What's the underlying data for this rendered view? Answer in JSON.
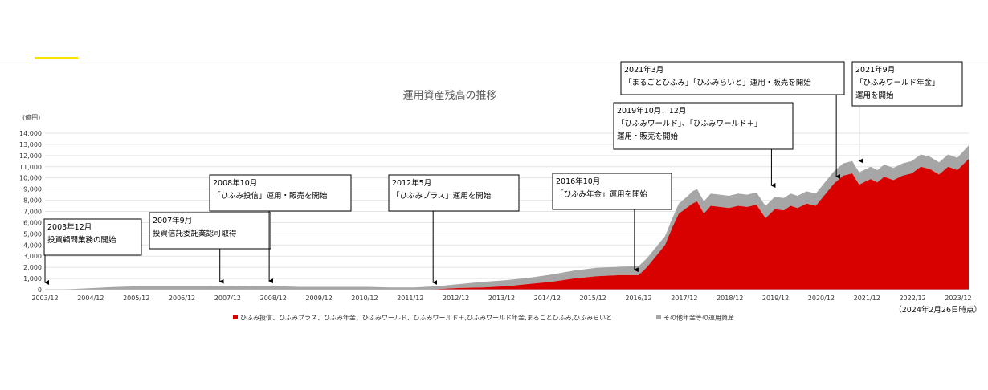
{
  "chart_data": {
    "type": "area",
    "title": "運用資産残高の推移",
    "ylabel": "(億円)",
    "ylim": [
      0,
      14000
    ],
    "y_ticks": [
      "0",
      "1,000",
      "2,000",
      "3,000",
      "4,000",
      "5,000",
      "6,000",
      "7,000",
      "8,000",
      "9,000",
      "10,000",
      "11,000",
      "12,000",
      "13,000",
      "14,000"
    ],
    "x_labels": [
      "2003/12",
      "2004/12",
      "2005/12",
      "2006/12",
      "2007/12",
      "2008/12",
      "2009/12",
      "2010/12",
      "2011/12",
      "2012/12",
      "2013/12",
      "2014/12",
      "2015/12",
      "2016/12",
      "2017/12",
      "2018/12",
      "2019/12",
      "2020/12",
      "2021/12",
      "2022/12",
      "2023/12"
    ],
    "x": [
      2003.92,
      2004.5,
      2005.0,
      2005.5,
      2006.0,
      2006.5,
      2007.0,
      2007.5,
      2008.0,
      2008.5,
      2009.0,
      2009.5,
      2010.0,
      2010.5,
      2011.0,
      2011.5,
      2012.0,
      2012.5,
      2013.0,
      2013.5,
      2014.0,
      2014.5,
      2015.0,
      2015.5,
      2016.0,
      2016.5,
      2016.92,
      2017.1,
      2017.3,
      2017.5,
      2017.65,
      2017.8,
      2018.0,
      2018.1,
      2018.2,
      2018.35,
      2018.5,
      2018.7,
      2018.9,
      2019.1,
      2019.3,
      2019.5,
      2019.7,
      2019.9,
      2020.1,
      2020.25,
      2020.4,
      2020.6,
      2020.8,
      2021.0,
      2021.2,
      2021.4,
      2021.6,
      2021.75,
      2021.9,
      2022.0,
      2022.15,
      2022.3,
      2022.5,
      2022.7,
      2022.9,
      2023.1,
      2023.3,
      2023.5,
      2023.7,
      2023.9,
      2024.15
    ],
    "series": [
      {
        "name": "ひふみ投信、ひふみプラス、ひふみ年金、ひふみワールド、ひふみワールド＋,ひふみワールド年金,まるごとひふみ,ひふみらいと",
        "color": "#d90000",
        "values": [
          0,
          0,
          0,
          0,
          0,
          0,
          0,
          0,
          0,
          0,
          0,
          0,
          0,
          0,
          0,
          0,
          0,
          50,
          150,
          200,
          300,
          500,
          700,
          1000,
          1200,
          1300,
          1300,
          2000,
          3000,
          4000,
          5500,
          6800,
          7400,
          7700,
          7900,
          6800,
          7500,
          7400,
          7300,
          7500,
          7400,
          7600,
          6400,
          7200,
          7100,
          7500,
          7300,
          7700,
          7500,
          8500,
          9500,
          10200,
          10400,
          9400,
          9700,
          9900,
          9600,
          10100,
          9800,
          10200,
          10400,
          11000,
          10800,
          10300,
          11000,
          10700,
          11700
        ]
      },
      {
        "name": "その他年金等の運用資産",
        "color": "#a6a6a6",
        "values": [
          0,
          50,
          150,
          250,
          300,
          300,
          300,
          300,
          350,
          300,
          300,
          250,
          250,
          250,
          250,
          200,
          200,
          250,
          350,
          500,
          550,
          550,
          650,
          700,
          750,
          750,
          800,
          800,
          800,
          800,
          800,
          900,
          1000,
          1100,
          1100,
          1100,
          1100,
          1100,
          1100,
          1100,
          1100,
          1100,
          1100,
          1100,
          1100,
          1100,
          1100,
          1100,
          1100,
          1100,
          1100,
          1100,
          1100,
          1100,
          1100,
          1100,
          1100,
          1100,
          1100,
          1100,
          1100,
          1100,
          1100,
          1100,
          1100,
          1100,
          1200
        ]
      }
    ],
    "legend_position": "bottom",
    "date_note": "（2024年2月26日時点）",
    "annotations": [
      {
        "lines": [
          "2003年12月",
          "投資顧問業務の開始"
        ],
        "x": 2003.92
      },
      {
        "lines": [
          "2007年9月",
          "投資信託委託業認可取得"
        ],
        "x": 2007.75
      },
      {
        "lines": [
          "2008年10月",
          "「ひふみ投信」運用・販売を開始"
        ],
        "x": 2008.83
      },
      {
        "lines": [
          "2012年5月",
          "「ひふみプラス」運用を開始"
        ],
        "x": 2012.42
      },
      {
        "lines": [
          "2016年10月",
          "「ひふみ年金」運用を開始"
        ],
        "x": 2016.83
      },
      {
        "lines": [
          "2019年10月、12月",
          "「ひふみワールド」、「ひふみワールド＋」",
          "運用・販売を開始"
        ],
        "x": 2019.83
      },
      {
        "lines": [
          "2021年3月",
          "「まるごとひふみ」「ひふみらいと」運用・販売を開始"
        ],
        "x": 2021.25
      },
      {
        "lines": [
          "2021年9月",
          "「ひふみワールド年金」",
          "運用を開始"
        ],
        "x": 2021.75
      }
    ]
  }
}
